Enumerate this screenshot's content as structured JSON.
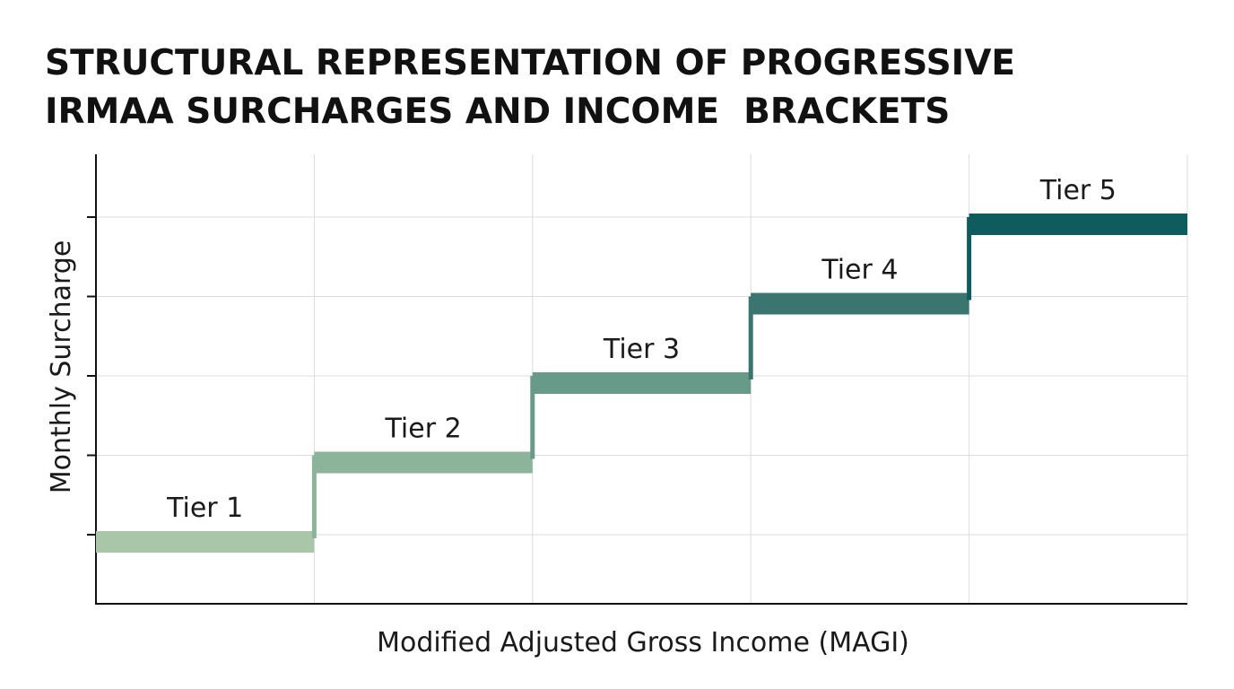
{
  "title_lines": [
    "STRUCTURAL REPRESENTATION OF PROGRESSIVE",
    "IRMAA SURCHARGES AND INCOME  BRACKETS"
  ],
  "chart_data": {
    "type": "line",
    "title": "STRUCTURAL REPRESENTATION OF PROGRESSIVE IRMAA SURCHARGES AND INCOME  BRACKETS",
    "xlabel": "Modified Adjusted Gross Income (MAGI)",
    "ylabel": "Monthly Surcharge",
    "step": true,
    "grid": true,
    "xlim": [
      0,
      5
    ],
    "ylim": [
      0,
      5.5
    ],
    "tiers": [
      {
        "label": "Tier 1",
        "x_start": 0,
        "x_end": 1,
        "level": 1,
        "color": "#a9c7a8"
      },
      {
        "label": "Tier 2",
        "x_start": 1,
        "x_end": 2,
        "level": 2,
        "color": "#8cb49a"
      },
      {
        "label": "Tier 3",
        "x_start": 2,
        "x_end": 3,
        "level": 3,
        "color": "#689a8a"
      },
      {
        "label": "Tier 4",
        "x_start": 3,
        "x_end": 4,
        "level": 4,
        "color": "#3a7570"
      },
      {
        "label": "Tier 5",
        "x_start": 4,
        "x_end": 5,
        "level": 5,
        "color": "#0e5c5e"
      }
    ],
    "y_ticks": [
      1,
      2,
      3,
      4,
      5
    ],
    "x_grid": [
      1,
      2,
      3,
      4,
      5
    ]
  }
}
